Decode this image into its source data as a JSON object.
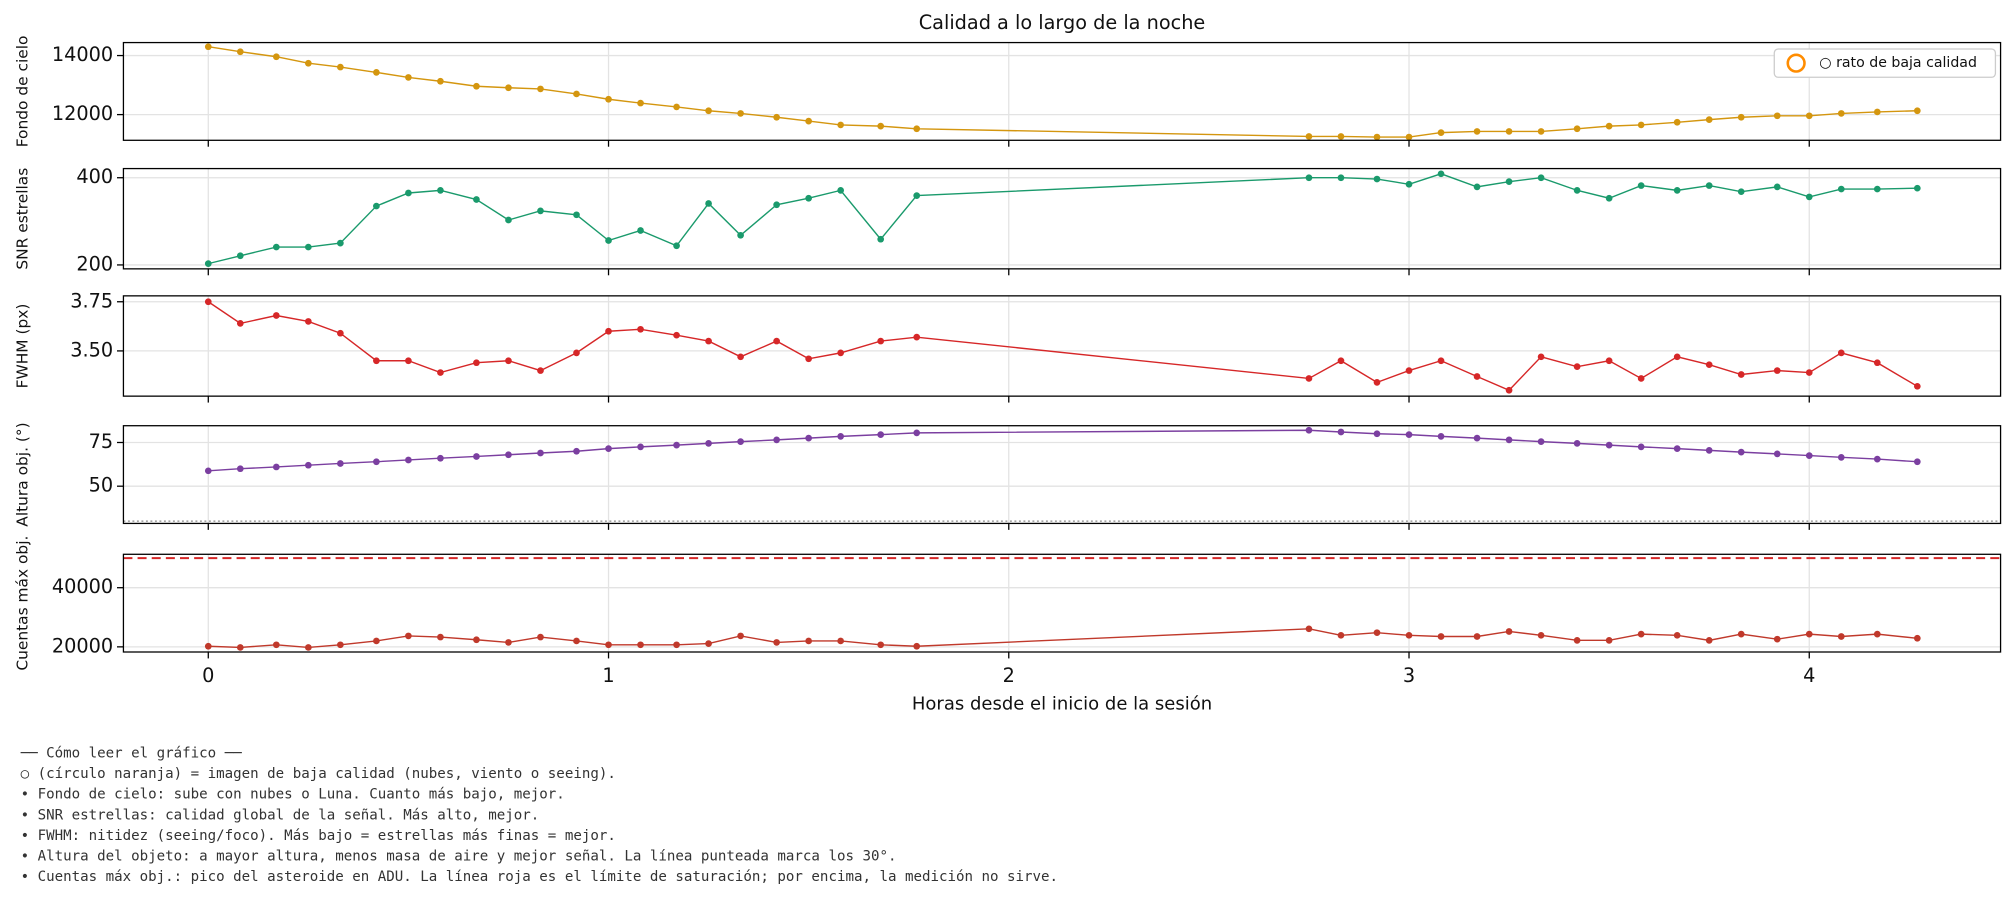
{
  "chart_data": [
    {
      "type": "line",
      "title": "Calidad a lo largo de la noche",
      "ylabel": "Fondo de cielo",
      "ylim": [
        11130,
        14440
      ],
      "yticks": [
        12000,
        14000
      ],
      "grid": true,
      "series": [
        {
          "color": "#d4960f",
          "values": [
            14300,
            14130,
            13960,
            13740,
            13610,
            13430,
            13260,
            13130,
            12960,
            12910,
            12870,
            12700,
            12520,
            12390,
            12260,
            12130,
            12040,
            11910,
            11780,
            11650,
            11610,
            11520,
            11260,
            11260,
            11240,
            11240,
            11390,
            11430,
            11430,
            11430,
            11520,
            11610,
            11650,
            11740,
            11830,
            11910,
            11960,
            11960,
            12040,
            12090,
            12130
          ]
        }
      ],
      "legend": {
        "label": "○ rato de baja calidad",
        "color": "#ff8c00",
        "loc": "upper right"
      }
    },
    {
      "type": "line",
      "ylabel": "SNR estrellas",
      "ylim": [
        191,
        421
      ],
      "yticks": [
        200,
        400
      ],
      "grid": true,
      "series": [
        {
          "color": "#1a9a6c",
          "values": [
            203,
            221,
            241,
            241,
            250,
            335,
            365,
            371,
            350,
            303,
            324,
            315,
            256,
            279,
            244,
            341,
            268,
            338,
            353,
            371,
            259,
            359,
            400,
            400,
            397,
            385,
            409,
            379,
            391,
            400,
            371,
            353,
            382,
            371,
            382,
            368,
            379,
            356,
            374,
            374,
            376
          ]
        }
      ]
    },
    {
      "type": "line",
      "ylabel": "FWHM (px)",
      "ylim": [
        3.27,
        3.78
      ],
      "yticks": [
        {
          "value": 3.5,
          "label": "3.50"
        },
        3.75
      ],
      "grid": true,
      "series": [
        {
          "color": "#d62728",
          "values": [
            3.75,
            3.64,
            3.68,
            3.65,
            3.59,
            3.45,
            3.45,
            3.39,
            3.44,
            3.45,
            3.4,
            3.49,
            3.6,
            3.61,
            3.58,
            3.55,
            3.47,
            3.55,
            3.46,
            3.49,
            3.55,
            3.57,
            3.36,
            3.45,
            3.34,
            3.4,
            3.45,
            3.37,
            3.3,
            3.47,
            3.42,
            3.45,
            3.36,
            3.47,
            3.43,
            3.38,
            3.4,
            3.39,
            3.49,
            3.44,
            3.32
          ]
        }
      ]
    },
    {
      "type": "line",
      "ylabel": "Altura obj. (°)",
      "ylim": [
        28.7,
        84.6
      ],
      "yticks": [
        50,
        75
      ],
      "grid": true,
      "series": [
        {
          "color": "#7b3fa0",
          "values": [
            58.8,
            60,
            61,
            62,
            63,
            64,
            65,
            66,
            67,
            68,
            69,
            70,
            71.5,
            72.5,
            73.5,
            74.5,
            75.5,
            76.5,
            77.5,
            78.5,
            79.5,
            80.5,
            82,
            81,
            80,
            79.5,
            78.5,
            77.5,
            76.5,
            75.5,
            74.5,
            73.5,
            72.5,
            71.5,
            70.5,
            69.5,
            68.5,
            67.5,
            66.5,
            65.5,
            64
          ]
        }
      ],
      "reference_line": {
        "value": 30,
        "color": "#888888",
        "style": "dotted"
      }
    },
    {
      "type": "line",
      "ylabel": "Cuentas máx obj.",
      "ylim": [
        18260,
        51300
      ],
      "yticks": [
        20000,
        40000
      ],
      "grid": true,
      "xlabel": "Horas desde el inicio de la sesión",
      "xlim": [
        -0.212,
        4.478
      ],
      "xticks": [
        0,
        1,
        2,
        3,
        4
      ],
      "x": [
        0,
        0.08,
        0.17,
        0.25,
        0.33,
        0.42,
        0.5,
        0.58,
        0.67,
        0.75,
        0.83,
        0.92,
        1.0,
        1.08,
        1.17,
        1.25,
        1.33,
        1.42,
        1.5,
        1.58,
        1.68,
        1.77,
        2.75,
        2.83,
        2.92,
        3.0,
        3.08,
        3.17,
        3.25,
        3.33,
        3.42,
        3.5,
        3.58,
        3.67,
        3.75,
        3.83,
        3.92,
        4.0,
        4.08,
        4.17,
        4.27
      ],
      "series": [
        {
          "color": "#c0392b",
          "values": [
            20200,
            19800,
            20700,
            19800,
            20700,
            22000,
            23700,
            23300,
            22400,
            21500,
            23300,
            22000,
            20700,
            20700,
            20700,
            21100,
            23700,
            21500,
            22000,
            22000,
            20700,
            20200,
            26100,
            23900,
            24800,
            23900,
            23500,
            23500,
            25200,
            23900,
            22200,
            22200,
            24300,
            23900,
            22200,
            24300,
            22600,
            24300,
            23500,
            24300,
            22900
          ]
        }
      ],
      "reference_line": {
        "value": 50000,
        "color": "#d62728",
        "style": "dashed"
      }
    }
  ],
  "notes": [
    "── Cómo leer el gráfico ──",
    "○ (círculo naranja) = imagen de baja calidad (nubes, viento o seeing).",
    "• Fondo de cielo: sube con nubes o Luna. Cuanto más bajo, mejor.",
    "• SNR estrellas: calidad global de la señal. Más alto, mejor.",
    "• FWHM: nitidez (seeing/foco). Más bajo = estrellas más finas = mejor.",
    "• Altura del objeto: a mayor altura, menos masa de aire y mejor señal. La línea punteada marca los 30°.",
    "• Cuentas máx obj.: pico del asteroide en ADU. La línea roja es el límite de saturación; por encima, la medición no sirve."
  ]
}
